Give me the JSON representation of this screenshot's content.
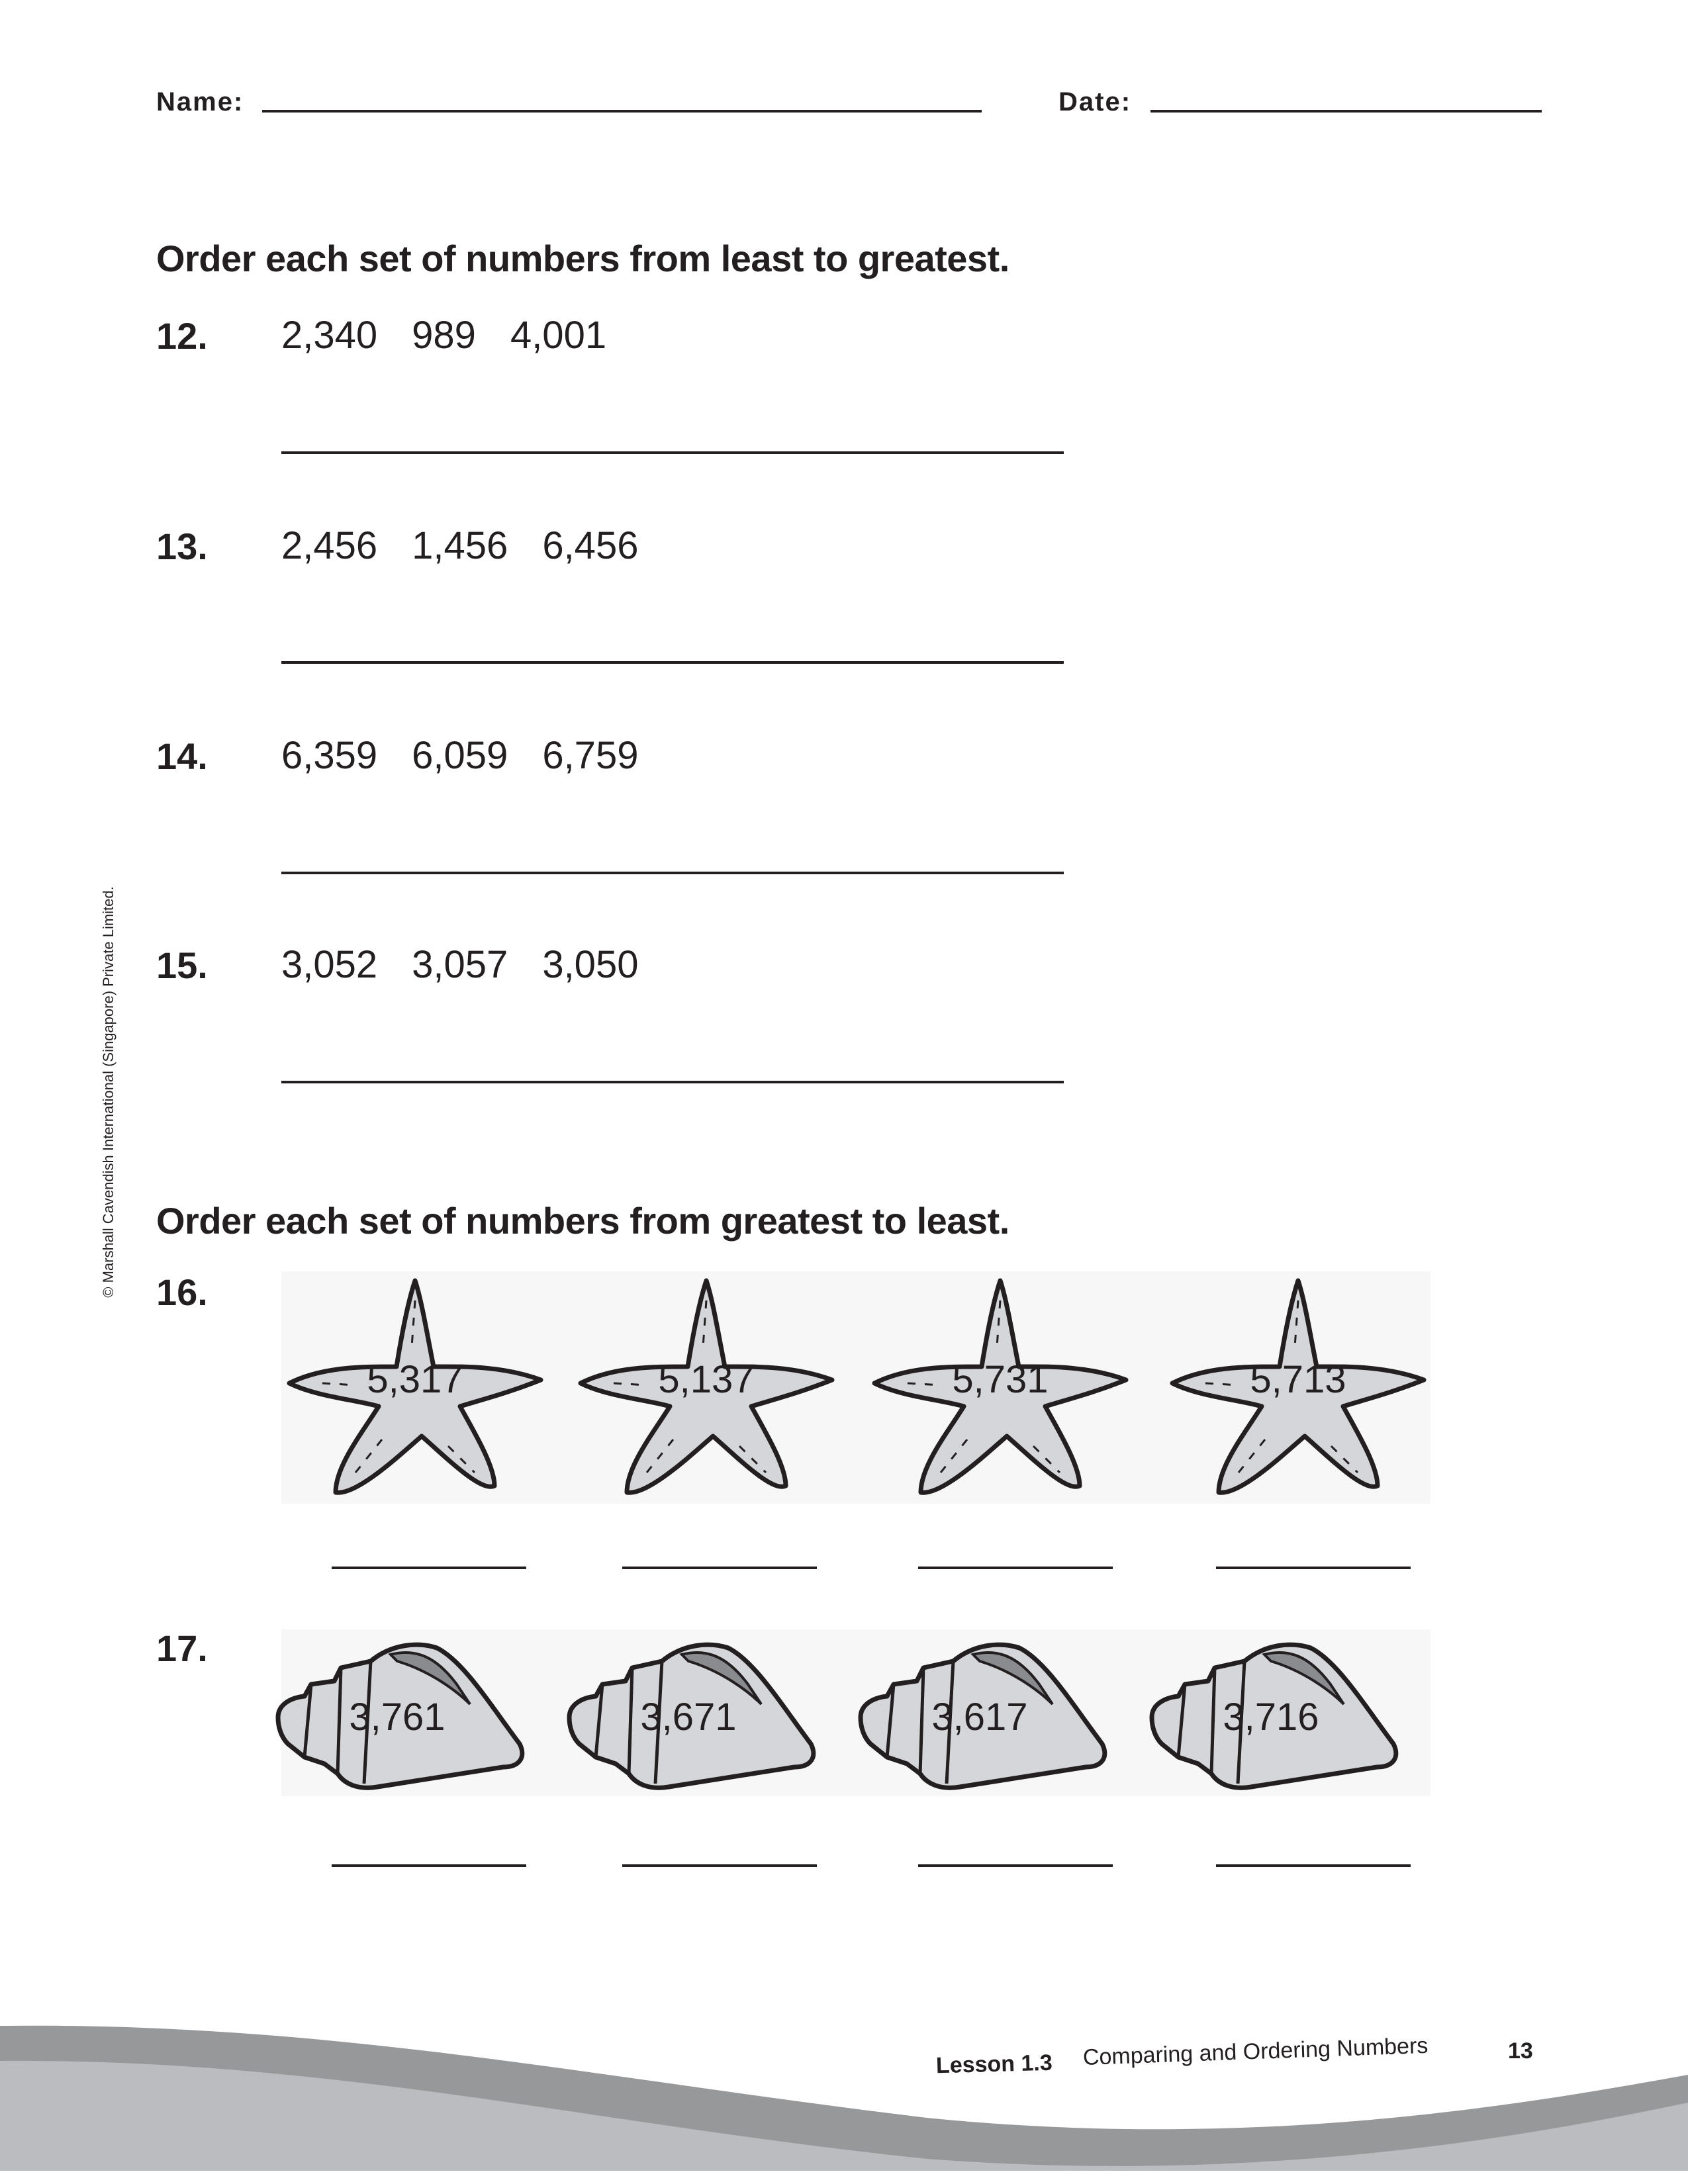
{
  "header": {
    "name_label": "Name:",
    "date_label": "Date:"
  },
  "section1": {
    "instruction": "Order each set of numbers from least to greatest.",
    "questions": [
      {
        "number": "12.",
        "values": [
          "2,340",
          "989",
          "4,001"
        ]
      },
      {
        "number": "13.",
        "values": [
          "2,456",
          "1,456",
          "6,456"
        ]
      },
      {
        "number": "14.",
        "values": [
          "6,359",
          "6,059",
          "6,759"
        ]
      },
      {
        "number": "15.",
        "values": [
          "3,052",
          "3,057",
          "3,050"
        ]
      }
    ]
  },
  "section2": {
    "instruction": "Order each set of numbers from greatest to least.",
    "q16": {
      "number": "16.",
      "icon": "starfish-icon",
      "values": [
        "5,317",
        "5,137",
        "5,731",
        "5,713"
      ]
    },
    "q17": {
      "number": "17.",
      "icon": "seashell-icon",
      "values": [
        "3,761",
        "3,671",
        "3,617",
        "3,716"
      ]
    }
  },
  "copyright": "© Marshall Cavendish International (Singapore) Private Limited.",
  "footer": {
    "lesson": "Lesson 1.3",
    "title": "Comparing and Ordering Numbers",
    "page": "13"
  },
  "colors": {
    "ink": "#231f20",
    "shape_fill": "#d5d6d9",
    "wave_dark": "#97989a",
    "wave_light": "#bbbcc0"
  }
}
